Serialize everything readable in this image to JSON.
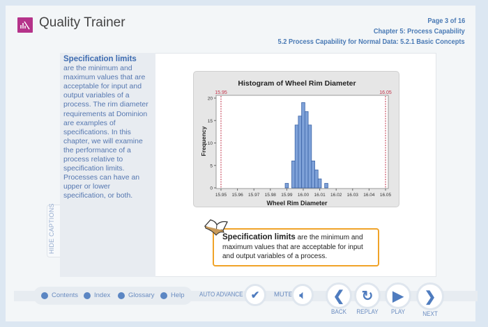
{
  "app": {
    "title": "Quality Trainer",
    "logo": "quality-trainer-logo"
  },
  "header": {
    "page": "Page 3 of 16",
    "chapter": "Chapter 5: Process Capability",
    "section": "5.2 Process Capability for Normal Data: 5.2.1 Basic Concepts"
  },
  "captions": {
    "term": "Specification limits",
    "text": "are the minimum and maximum values that are acceptable for input and output variables of a process. The rim diameter requirements at Dominion are examples of specifications. In this chapter, we will examine the performance of a process relative to specification limits. Processes can have an upper or lower specification, or both.",
    "hide_label": "HIDE CAPTIONS"
  },
  "callout": {
    "term": "Specification limits",
    "text": " are the minimum and maximum values that are acceptable for input and output variables of a process.",
    "icon": "book-icon"
  },
  "chart_data": {
    "type": "bar",
    "title": "Histogram of Wheel Rim Diameter",
    "xlabel": "Wheel Rim Diameter",
    "ylabel": "Frequency",
    "xlim": [
      15.95,
      16.05
    ],
    "ylim": [
      0,
      20
    ],
    "xticks": [
      "15.95",
      "15.96",
      "15.97",
      "15.98",
      "15.99",
      "16.00",
      "16.01",
      "16.02",
      "16.03",
      "16.04",
      "16.05"
    ],
    "yticks": [
      "0",
      "5",
      "10",
      "15",
      "20"
    ],
    "bin_width": 0.002,
    "bin_centers": [
      15.99,
      15.994,
      15.996,
      15.998,
      16.0,
      16.002,
      16.004,
      16.006,
      16.008,
      16.01,
      16.014
    ],
    "values": [
      1,
      6,
      14,
      16,
      19,
      17,
      14,
      6,
      4,
      2,
      1
    ],
    "spec_limits": [
      {
        "label": "15.95",
        "value": 15.95
      },
      {
        "label": "16.05",
        "value": 16.05
      }
    ],
    "colors": {
      "bar": "#7ea1d8",
      "bar_edge": "#3b63a6",
      "spec": "#c2334a"
    }
  },
  "nav": {
    "contents": "Contents",
    "index": "Index",
    "glossary": "Glossary",
    "help": "Help",
    "auto_advance": "AUTO ADVANCE",
    "mute": "MUTE",
    "back": "BACK",
    "replay": "REPLAY",
    "play": "PLAY",
    "next": "NEXT"
  }
}
